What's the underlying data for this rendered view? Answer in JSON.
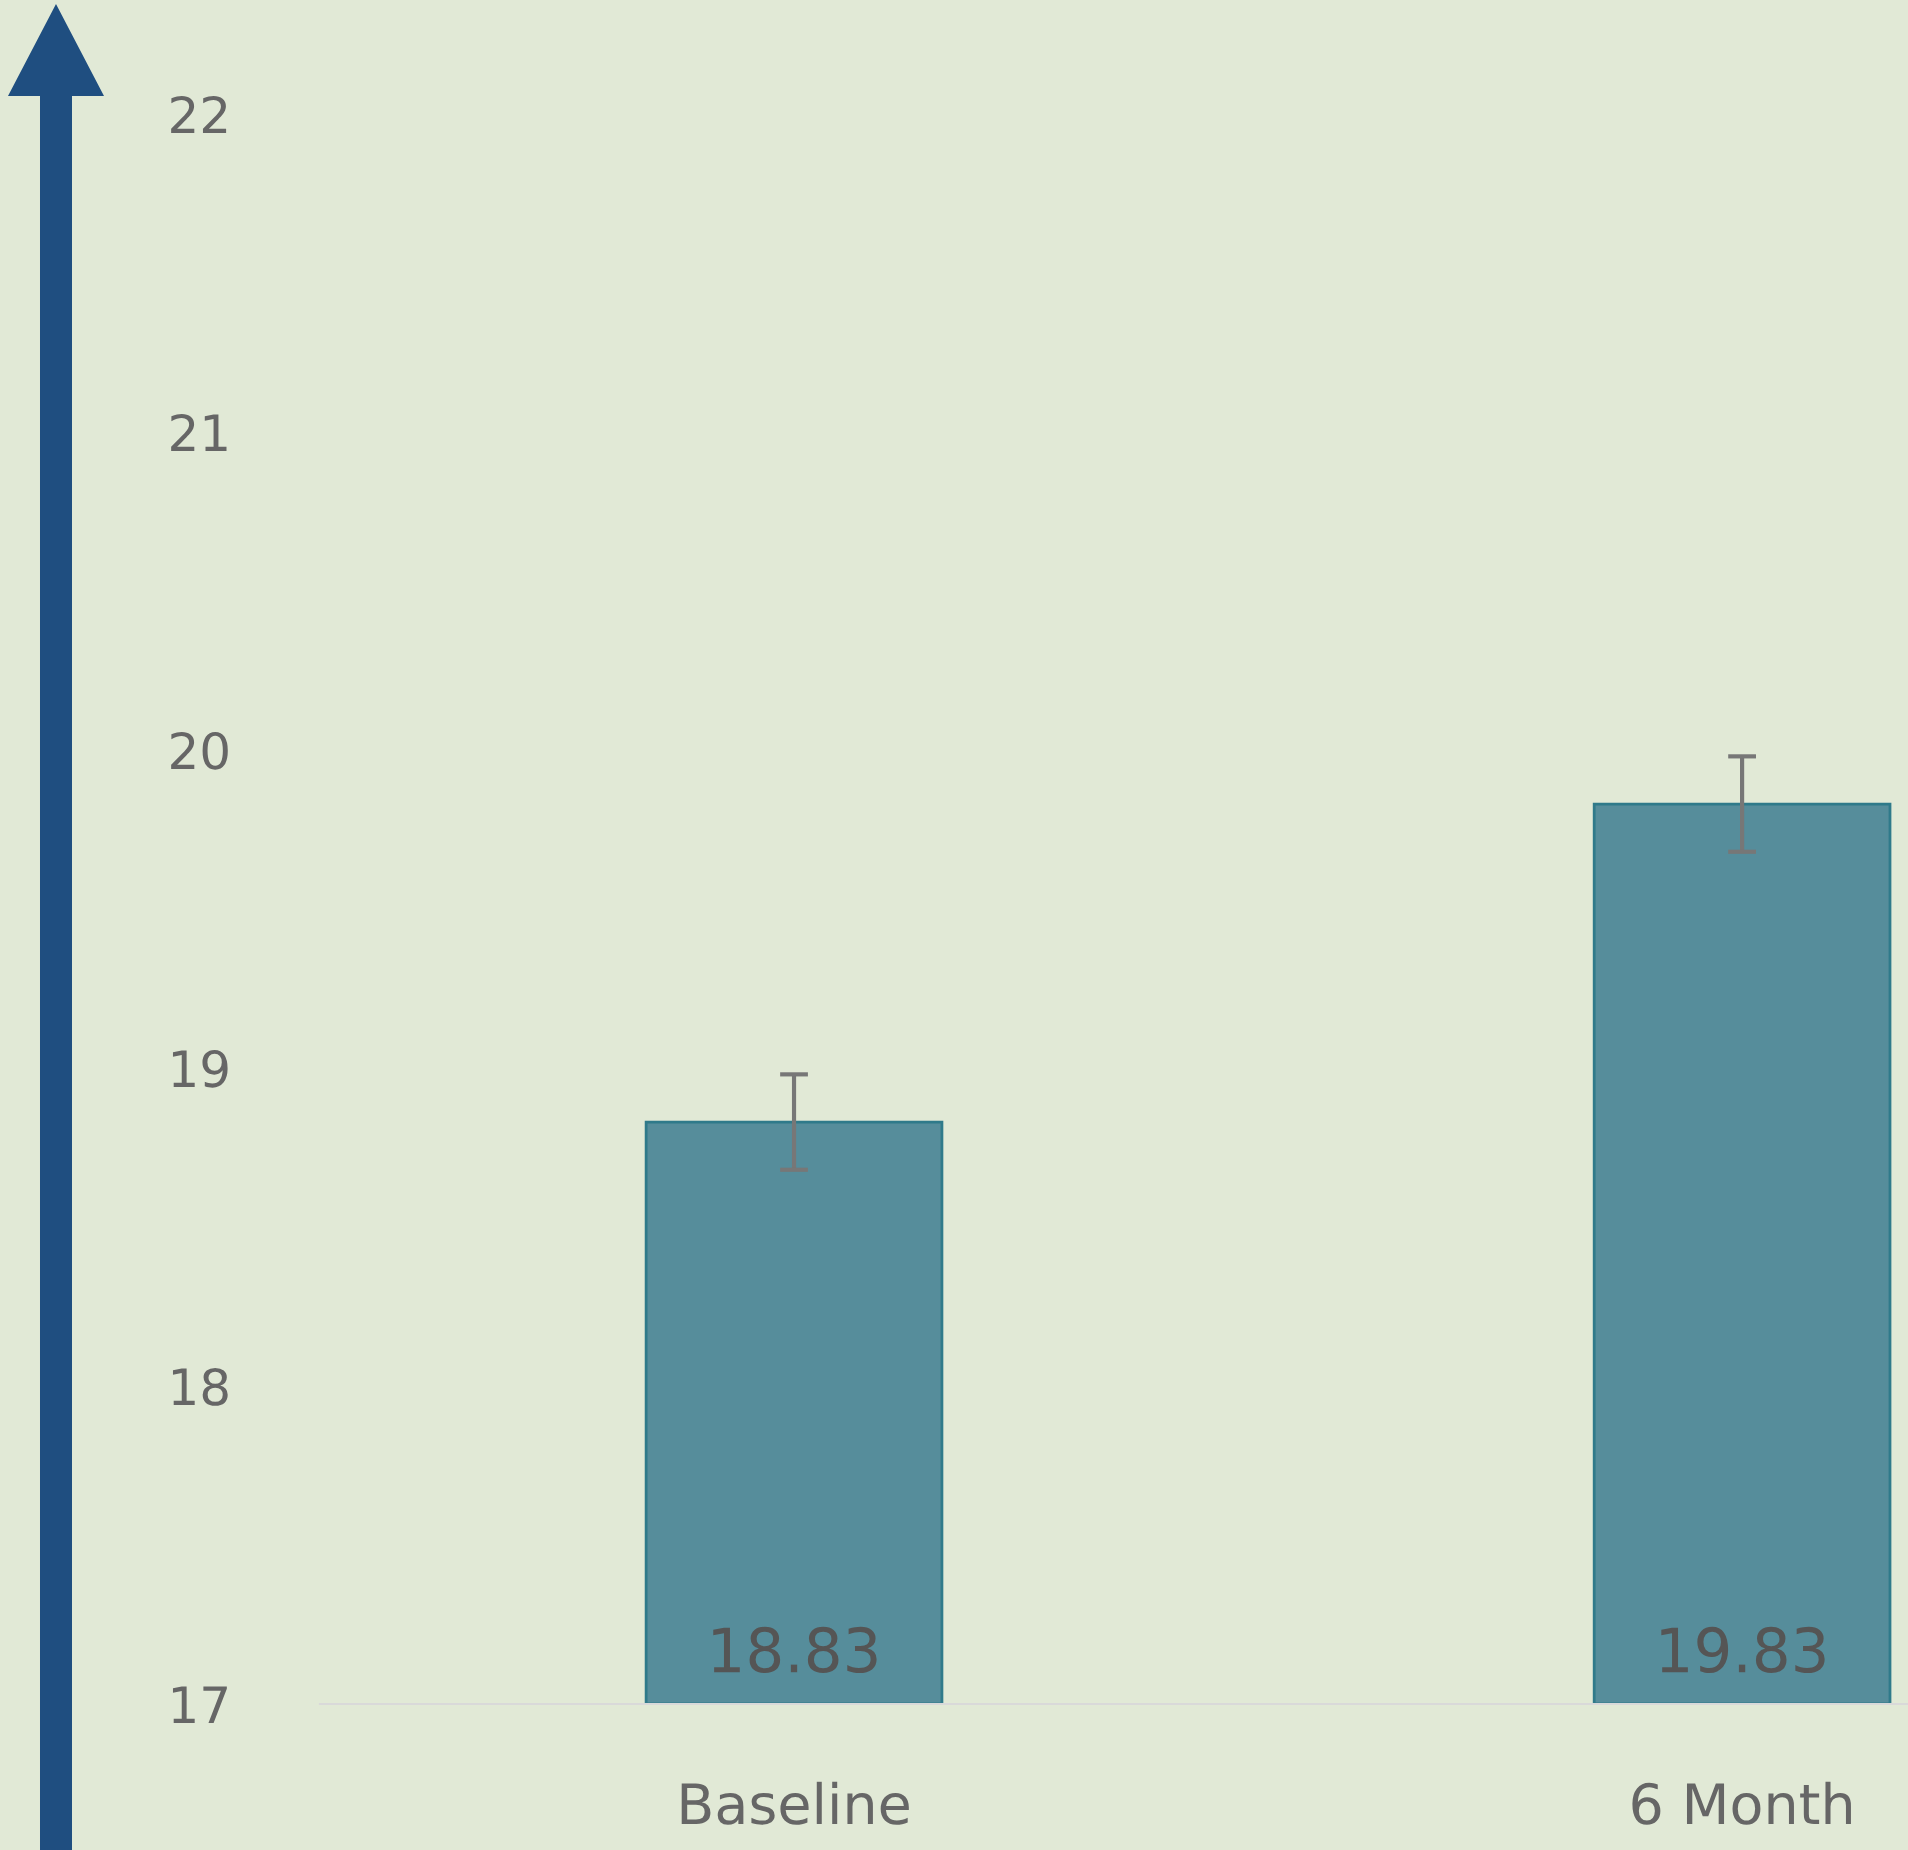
{
  "chart_data": {
    "type": "bar",
    "categories": [
      "Baseline",
      "6 Month"
    ],
    "values": [
      18.83,
      19.83
    ],
    "errors": [
      0.15,
      0.15
    ],
    "color": "#568d9b",
    "ylim": [
      17,
      22
    ],
    "yticks": [
      17,
      18,
      19,
      20,
      21,
      22
    ],
    "data_labels": true,
    "grid": false,
    "legend": false
  }
}
